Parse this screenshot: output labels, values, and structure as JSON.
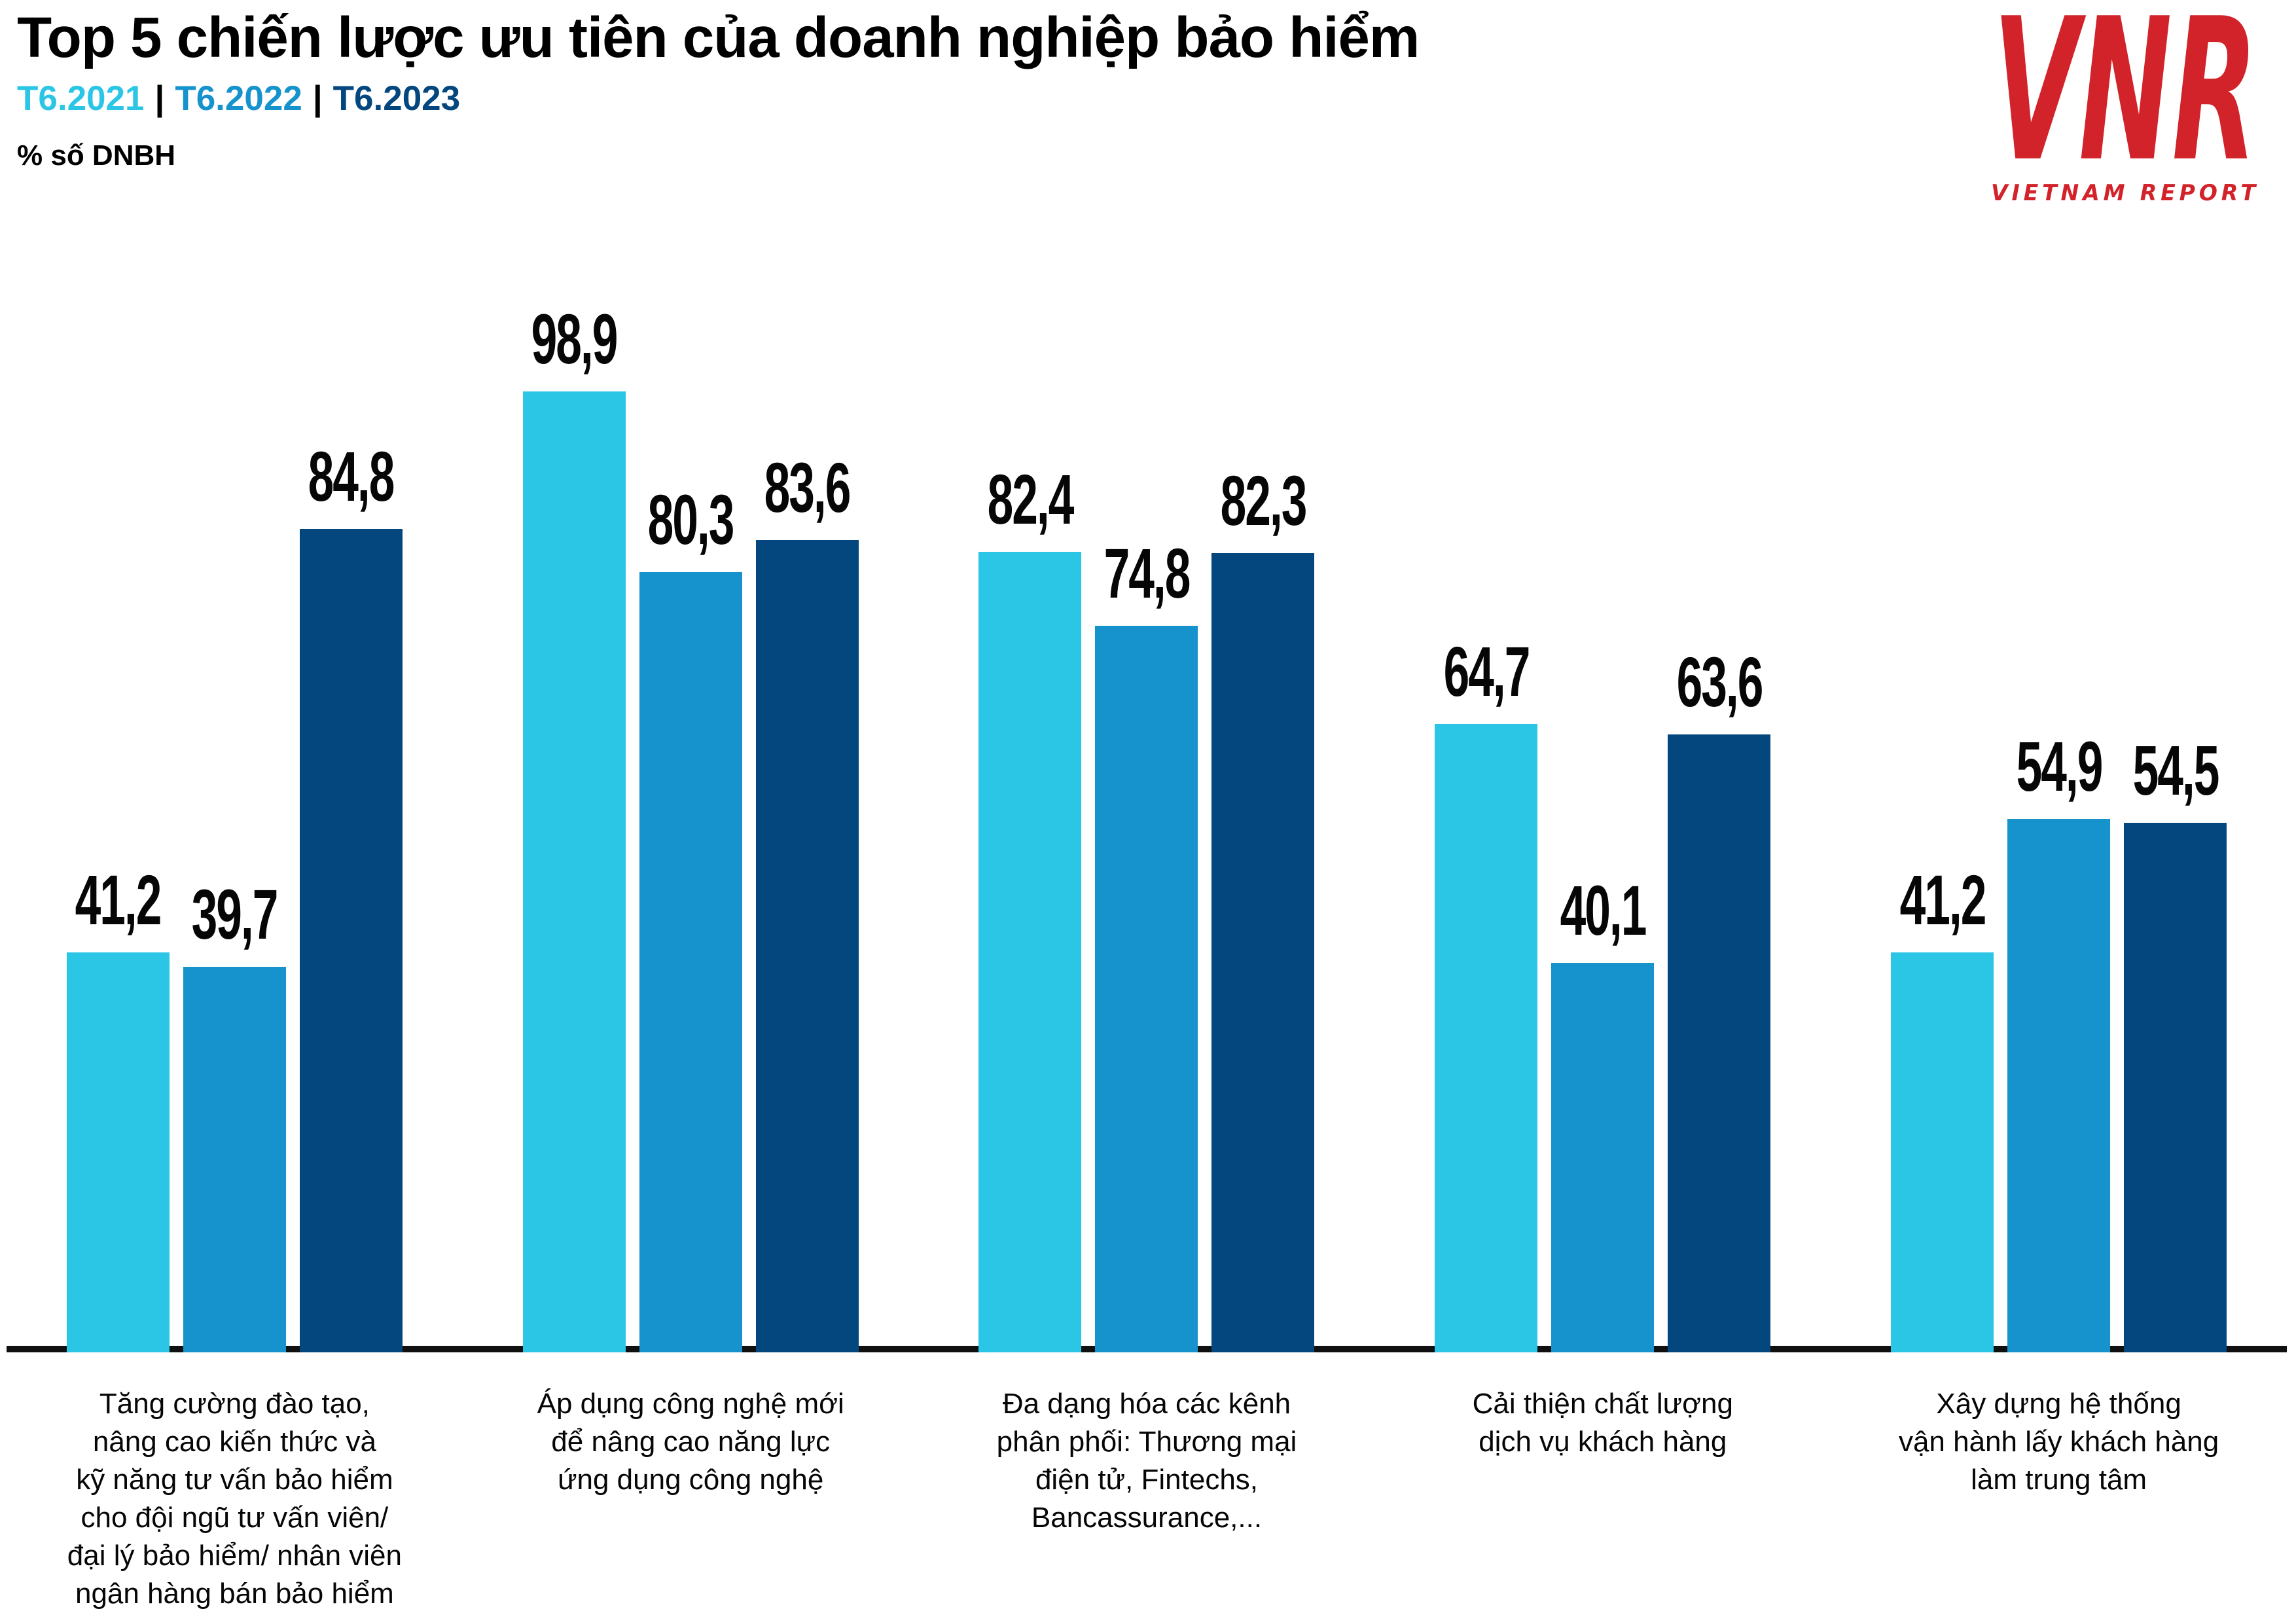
{
  "page": {
    "title": "Top 5 chiến lược ưu tiên của doanh nghiệp bảo hiểm",
    "unit_note": "% số DNBH"
  },
  "legend": {
    "separator": "|",
    "items": [
      {
        "label": "T6.2021",
        "color": "#2bc6e6"
      },
      {
        "label": "T6.2022",
        "color": "#1693cd"
      },
      {
        "label": "T6.2023",
        "color": "#04477e"
      }
    ]
  },
  "logo": {
    "acronym": "VNR",
    "wordmark": "VIETNAM REPORT",
    "color": "#d2232a"
  },
  "chart_data": {
    "type": "bar",
    "title": "Top 5 chiến lược ưu tiên của doanh nghiệp bảo hiểm",
    "subtitle_legend": "T6.2021 | T6.2022 | T6.2023",
    "ylabel": "% số DNBH",
    "ylim": [
      0,
      100
    ],
    "grid": false,
    "legend_position": "top-left",
    "value_decimal_separator": ",",
    "categories": [
      [
        "Tăng cường đào tạo,",
        "nâng cao kiến thức và",
        "kỹ năng tư vấn bảo hiểm",
        "cho đội ngũ tư vấn viên/",
        "đại lý bảo hiểm/ nhân viên",
        "ngân hàng bán bảo hiểm"
      ],
      [
        "Áp dụng công nghệ mới",
        "để nâng cao năng lực",
        "ứng dụng công nghệ"
      ],
      [
        "Đa dạng hóa các kênh",
        "phân phối: Thương mại",
        "điện tử, Fintechs,",
        "Bancassurance,..."
      ],
      [
        "Cải thiện chất lượng",
        "dịch vụ khách hàng"
      ],
      [
        "Xây dựng hệ thống",
        "vận hành lấy khách hàng",
        "làm trung tâm"
      ]
    ],
    "series": [
      {
        "name": "T6.2021",
        "color": "#2bc6e6",
        "values": [
          41.2,
          98.9,
          82.4,
          64.7,
          41.2
        ],
        "labels": [
          "41,2",
          "98,9",
          "82,4",
          "64,7",
          "41,2"
        ]
      },
      {
        "name": "T6.2022",
        "color": "#1693cd",
        "values": [
          39.7,
          80.3,
          74.8,
          40.1,
          54.9
        ],
        "labels": [
          "39,7",
          "80,3",
          "74,8",
          "40,1",
          "54,9"
        ]
      },
      {
        "name": "T6.2023",
        "color": "#04477e",
        "values": [
          84.8,
          83.6,
          82.3,
          63.6,
          54.5
        ],
        "labels": [
          "84,8",
          "83,6",
          "82,3",
          "63,6",
          "54,5"
        ]
      }
    ]
  }
}
